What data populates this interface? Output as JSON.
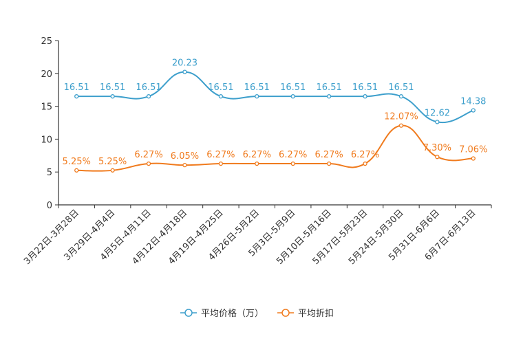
{
  "chart_data": {
    "type": "line",
    "categories": [
      "3月22日-3月28日",
      "3月29日-4月4日",
      "4月5日-4月11日",
      "4月12日-4月18日",
      "4月19日-4月25日",
      "4月26日-5月2日",
      "5月3日-5月9日",
      "5月10日-5月16日",
      "5月17日-5月23日",
      "5月24日-5月30日",
      "5月31日-6月6日",
      "6月7日-6月13日"
    ],
    "ylim": [
      0,
      25
    ],
    "yticks": [
      0,
      5,
      10,
      15,
      20,
      25
    ],
    "series": [
      {
        "name": "平均价格（万）",
        "color": "#3d9fcc",
        "values": [
          16.51,
          16.51,
          16.51,
          20.23,
          16.51,
          16.51,
          16.51,
          16.51,
          16.51,
          16.51,
          12.62,
          14.38
        ],
        "labels": [
          "16.51",
          "16.51",
          "16.51",
          "20.23",
          "16.51",
          "16.51",
          "16.51",
          "16.51",
          "16.51",
          "16.51",
          "12.62",
          "14.38"
        ]
      },
      {
        "name": "平均折扣",
        "color": "#f07b1e",
        "values": [
          5.25,
          5.25,
          6.27,
          6.05,
          6.27,
          6.27,
          6.27,
          6.27,
          6.27,
          12.07,
          7.3,
          7.06
        ],
        "labels": [
          "5.25%",
          "5.25%",
          "6.27%",
          "6.05%",
          "6.27%",
          "6.27%",
          "6.27%",
          "6.27%",
          "6.27%",
          "12.07%",
          "7.30%",
          "7.06%"
        ]
      }
    ],
    "legend_position": "bottom-center",
    "smooth": true
  }
}
